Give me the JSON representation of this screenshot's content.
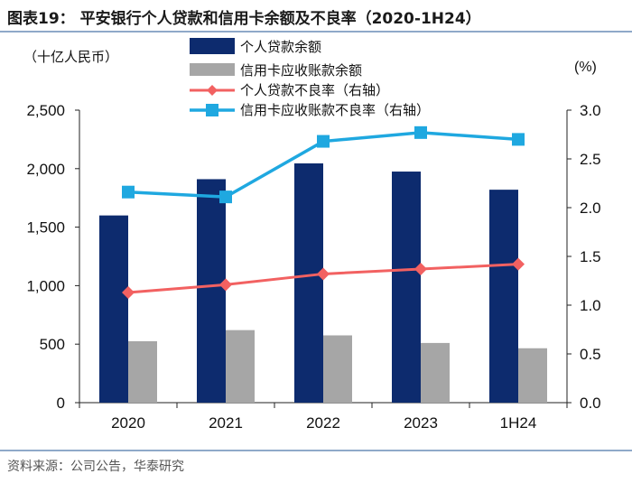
{
  "figure": {
    "title": "图表19： 平安银行个人贷款和信用卡余额及不良率（2020-1H24）",
    "source": "资料来源：公司公告，华泰研究"
  },
  "chart_data": {
    "type": "bar",
    "title": "图表19： 平安银行个人贷款和信用卡余额及不良率（2020-1H24）",
    "categories": [
      "2020",
      "2021",
      "2022",
      "2023",
      "1H24"
    ],
    "left_axis": {
      "unit_label": "（十亿人民币）",
      "ylim": [
        0,
        2500
      ],
      "ticks": [
        0,
        500,
        1000,
        1500,
        2000,
        2500
      ],
      "tick_labels": [
        "0",
        "500",
        "1,000",
        "1,500",
        "2,000",
        "2,500"
      ]
    },
    "right_axis": {
      "unit_label": "(%)",
      "ylim": [
        0.0,
        3.0
      ],
      "ticks": [
        0.0,
        0.5,
        1.0,
        1.5,
        2.0,
        2.5,
        3.0
      ],
      "tick_labels": [
        "0.0",
        "0.5",
        "1.0",
        "1.5",
        "2.0",
        "2.5",
        "3.0"
      ]
    },
    "series": [
      {
        "name": "个人贷款余额",
        "kind": "bar",
        "axis": "left",
        "color": "#0d2b6e",
        "values": [
          1600,
          1910,
          2045,
          1975,
          1820
        ]
      },
      {
        "name": "信用卡应收账款余额",
        "kind": "bar",
        "axis": "left",
        "color": "#a6a6a6",
        "values": [
          525,
          620,
          575,
          510,
          465
        ]
      },
      {
        "name": "个人贷款不良率（右轴）",
        "kind": "line",
        "axis": "right",
        "marker": "diamond",
        "color": "#f26161",
        "values": [
          1.13,
          1.21,
          1.32,
          1.37,
          1.42
        ]
      },
      {
        "name": "信用卡应收账款不良率（右轴）",
        "kind": "line",
        "axis": "right",
        "marker": "square",
        "color": "#1fa8e0",
        "values": [
          2.16,
          2.11,
          2.68,
          2.77,
          2.7
        ]
      }
    ],
    "legend_position": "top-center",
    "grid": false
  }
}
